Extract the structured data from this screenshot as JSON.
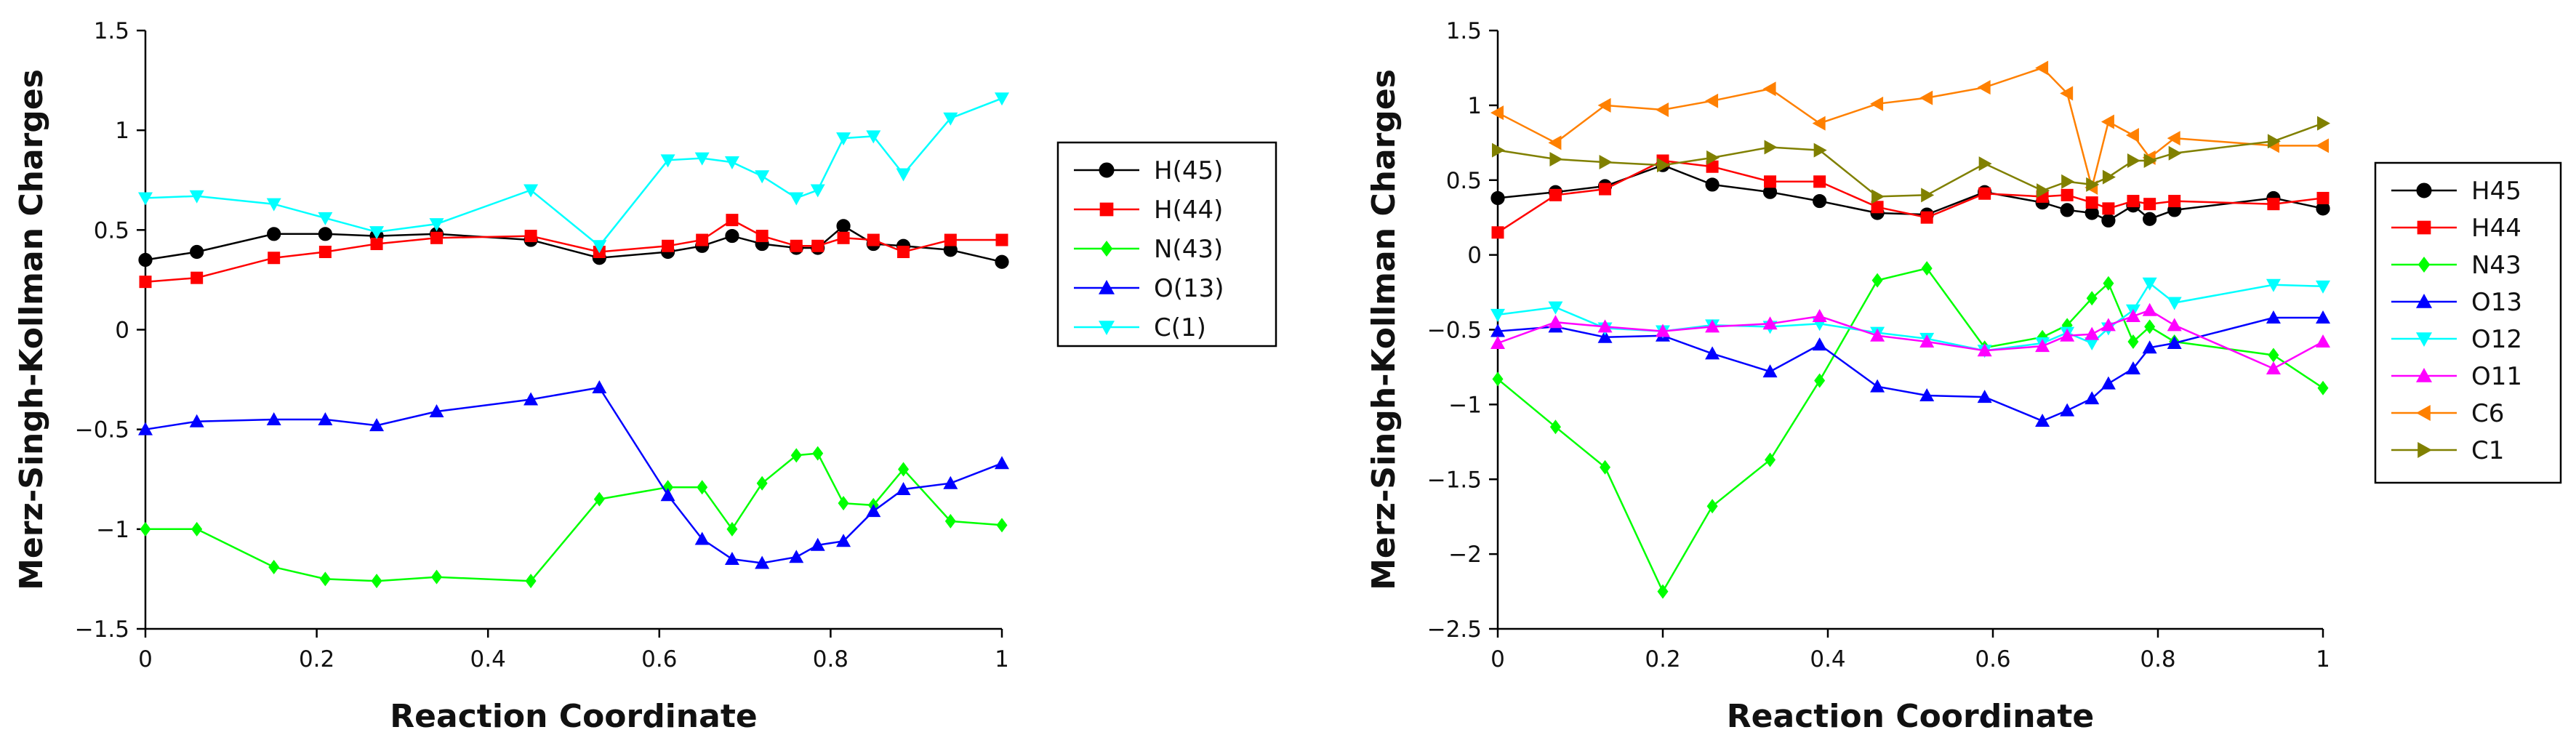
{
  "chart_data": [
    {
      "type": "line",
      "title": "",
      "xlabel": "Reaction Coordinate",
      "ylabel": "Merz-Singh-Kollman Charges",
      "xlim": [
        0,
        1
      ],
      "ylim": [
        -1.5,
        1.5
      ],
      "xticks": [
        0,
        0.2,
        0.4,
        0.6,
        0.8,
        1
      ],
      "xtick_labels": [
        "0",
        "0.2",
        "0.4",
        "0.6",
        "0.8",
        "1"
      ],
      "yticks": [
        -1.5,
        -1,
        -0.5,
        0,
        0.5,
        1,
        1.5
      ],
      "ytick_labels": [
        "−1.5",
        "−1",
        "−0.5",
        "0",
        "0.5",
        "1",
        "1.5"
      ],
      "legend_position": "right",
      "series": [
        {
          "name": "H(45)",
          "color": "#000000",
          "marker": "circle",
          "x": [
            0,
            0.06,
            0.15,
            0.21,
            0.27,
            0.34,
            0.45,
            0.53,
            0.61,
            0.65,
            0.685,
            0.72,
            0.76,
            0.785,
            0.815,
            0.85,
            0.885,
            0.94,
            1.0
          ],
          "y": [
            0.35,
            0.39,
            0.48,
            0.48,
            0.47,
            0.48,
            0.45,
            0.36,
            0.39,
            0.42,
            0.47,
            0.43,
            0.41,
            0.41,
            0.52,
            0.43,
            0.42,
            0.4,
            0.34
          ]
        },
        {
          "name": "H(44)",
          "color": "#ff0000",
          "marker": "square",
          "x": [
            0,
            0.06,
            0.15,
            0.21,
            0.27,
            0.34,
            0.45,
            0.53,
            0.61,
            0.65,
            0.685,
            0.72,
            0.76,
            0.785,
            0.815,
            0.85,
            0.885,
            0.94,
            1.0
          ],
          "y": [
            0.24,
            0.26,
            0.36,
            0.39,
            0.43,
            0.46,
            0.47,
            0.39,
            0.42,
            0.45,
            0.55,
            0.47,
            0.42,
            0.42,
            0.46,
            0.45,
            0.39,
            0.45,
            0.45
          ]
        },
        {
          "name": "N(43)",
          "color": "#00ff00",
          "marker": "diamond",
          "x": [
            0,
            0.06,
            0.15,
            0.21,
            0.27,
            0.34,
            0.45,
            0.53,
            0.61,
            0.65,
            0.685,
            0.72,
            0.76,
            0.785,
            0.815,
            0.85,
            0.885,
            0.94,
            1.0
          ],
          "y": [
            -1.0,
            -1.0,
            -1.19,
            -1.25,
            -1.26,
            -1.24,
            -1.26,
            -0.85,
            -0.79,
            -0.79,
            -1.0,
            -0.77,
            -0.63,
            -0.62,
            -0.87,
            -0.88,
            -0.7,
            -0.96,
            -0.98
          ]
        },
        {
          "name": "O(13)",
          "color": "#0000ff",
          "marker": "triangle-up",
          "x": [
            0,
            0.06,
            0.15,
            0.21,
            0.27,
            0.34,
            0.45,
            0.53,
            0.61,
            0.65,
            0.685,
            0.72,
            0.76,
            0.785,
            0.815,
            0.85,
            0.885,
            0.94,
            1.0
          ],
          "y": [
            -0.5,
            -0.46,
            -0.45,
            -0.45,
            -0.48,
            -0.41,
            -0.35,
            -0.29,
            -0.83,
            -1.05,
            -1.15,
            -1.17,
            -1.14,
            -1.08,
            -1.06,
            -0.91,
            -0.8,
            -0.77,
            -0.67
          ]
        },
        {
          "name": "C(1)",
          "color": "#00ffff",
          "marker": "triangle-down",
          "x": [
            0,
            0.06,
            0.15,
            0.21,
            0.27,
            0.34,
            0.45,
            0.53,
            0.61,
            0.65,
            0.685,
            0.72,
            0.76,
            0.785,
            0.815,
            0.85,
            0.885,
            0.94,
            1.0
          ],
          "y": [
            0.66,
            0.67,
            0.63,
            0.56,
            0.49,
            0.53,
            0.7,
            0.42,
            0.85,
            0.86,
            0.84,
            0.77,
            0.66,
            0.7,
            0.96,
            0.97,
            0.78,
            1.06,
            1.16
          ]
        }
      ]
    },
    {
      "type": "line",
      "title": "",
      "xlabel": "Reaction Coordinate",
      "ylabel": "Merz-Singh-Kollman Charges",
      "xlim": [
        0,
        1
      ],
      "ylim": [
        -2.5,
        1.5
      ],
      "xticks": [
        0,
        0.2,
        0.4,
        0.6,
        0.8,
        1
      ],
      "xtick_labels": [
        "0",
        "0.2",
        "0.4",
        "0.6",
        "0.8",
        "1"
      ],
      "yticks": [
        -2.5,
        -2,
        -1.5,
        -1,
        -0.5,
        0,
        0.5,
        1,
        1.5
      ],
      "ytick_labels": [
        "−2.5",
        "−2",
        "−1.5",
        "−1",
        "−0.5",
        "0",
        "0.5",
        "1",
        "1.5"
      ],
      "legend_position": "right",
      "series": [
        {
          "name": "H45",
          "color": "#000000",
          "marker": "circle",
          "x": [
            0,
            0.07,
            0.13,
            0.2,
            0.26,
            0.33,
            0.39,
            0.46,
            0.52,
            0.59,
            0.66,
            0.69,
            0.72,
            0.74,
            0.77,
            0.79,
            0.82,
            0.94,
            1.0
          ],
          "y": [
            0.38,
            0.42,
            0.46,
            0.6,
            0.47,
            0.42,
            0.36,
            0.28,
            0.27,
            0.42,
            0.35,
            0.3,
            0.28,
            0.23,
            0.33,
            0.24,
            0.3,
            0.38,
            0.31
          ]
        },
        {
          "name": "H44",
          "color": "#ff0000",
          "marker": "square",
          "x": [
            0,
            0.07,
            0.13,
            0.2,
            0.26,
            0.33,
            0.39,
            0.46,
            0.52,
            0.59,
            0.66,
            0.69,
            0.72,
            0.74,
            0.77,
            0.79,
            0.82,
            0.94,
            1.0
          ],
          "y": [
            0.15,
            0.4,
            0.44,
            0.63,
            0.59,
            0.49,
            0.49,
            0.32,
            0.25,
            0.41,
            0.39,
            0.4,
            0.35,
            0.31,
            0.36,
            0.34,
            0.36,
            0.34,
            0.38
          ]
        },
        {
          "name": "N43",
          "color": "#00ff00",
          "marker": "diamond",
          "x": [
            0,
            0.07,
            0.13,
            0.2,
            0.26,
            0.33,
            0.39,
            0.46,
            0.52,
            0.59,
            0.66,
            0.69,
            0.72,
            0.74,
            0.77,
            0.79,
            0.82,
            0.94,
            1.0
          ],
          "y": [
            -0.83,
            -1.15,
            -1.42,
            -2.25,
            -1.68,
            -1.37,
            -0.84,
            -0.17,
            -0.09,
            -0.62,
            -0.55,
            -0.47,
            -0.29,
            -0.19,
            -0.58,
            -0.48,
            -0.58,
            -0.67,
            -0.89
          ]
        },
        {
          "name": "O13",
          "color": "#0000ff",
          "marker": "triangle-up",
          "x": [
            0,
            0.07,
            0.13,
            0.2,
            0.26,
            0.33,
            0.39,
            0.46,
            0.52,
            0.59,
            0.66,
            0.69,
            0.72,
            0.74,
            0.77,
            0.79,
            0.82,
            0.94,
            1.0
          ],
          "y": [
            -0.51,
            -0.48,
            -0.55,
            -0.54,
            -0.66,
            -0.78,
            -0.6,
            -0.88,
            -0.94,
            -0.95,
            -1.11,
            -1.04,
            -0.96,
            -0.86,
            -0.76,
            -0.62,
            -0.59,
            -0.42,
            -0.42
          ]
        },
        {
          "name": "O12",
          "color": "#00ffff",
          "marker": "triangle-down",
          "x": [
            0,
            0.07,
            0.13,
            0.2,
            0.26,
            0.33,
            0.39,
            0.46,
            0.52,
            0.59,
            0.66,
            0.69,
            0.72,
            0.74,
            0.77,
            0.79,
            0.82,
            0.94,
            1.0
          ],
          "y": [
            -0.4,
            -0.35,
            -0.49,
            -0.51,
            -0.47,
            -0.48,
            -0.46,
            -0.52,
            -0.56,
            -0.64,
            -0.59,
            -0.52,
            -0.59,
            -0.49,
            -0.37,
            -0.19,
            -0.32,
            -0.2,
            -0.21
          ]
        },
        {
          "name": "O11",
          "color": "#ff00ff",
          "marker": "triangle-up",
          "x": [
            0,
            0.07,
            0.13,
            0.2,
            0.26,
            0.33,
            0.39,
            0.46,
            0.52,
            0.59,
            0.66,
            0.69,
            0.72,
            0.74,
            0.77,
            0.79,
            0.82,
            0.94,
            1.0
          ],
          "y": [
            -0.59,
            -0.45,
            -0.48,
            -0.51,
            -0.48,
            -0.46,
            -0.41,
            -0.54,
            -0.58,
            -0.64,
            -0.61,
            -0.54,
            -0.53,
            -0.47,
            -0.41,
            -0.37,
            -0.47,
            -0.76,
            -0.58
          ]
        },
        {
          "name": "C6",
          "color": "#ff8000",
          "marker": "triangle-left",
          "x": [
            0,
            0.07,
            0.13,
            0.2,
            0.26,
            0.33,
            0.39,
            0.46,
            0.52,
            0.59,
            0.66,
            0.69,
            0.72,
            0.74,
            0.77,
            0.79,
            0.82,
            0.94,
            1.0
          ],
          "y": [
            0.95,
            0.75,
            1.0,
            0.97,
            1.03,
            1.11,
            0.88,
            1.01,
            1.05,
            1.12,
            1.25,
            1.08,
            0.45,
            0.89,
            0.8,
            0.65,
            0.78,
            0.73,
            0.73
          ]
        },
        {
          "name": "C1",
          "color": "#808000",
          "marker": "triangle-right",
          "x": [
            0,
            0.07,
            0.13,
            0.2,
            0.26,
            0.33,
            0.39,
            0.46,
            0.52,
            0.59,
            0.66,
            0.69,
            0.72,
            0.74,
            0.77,
            0.79,
            0.82,
            0.94,
            1.0
          ],
          "y": [
            0.7,
            0.64,
            0.62,
            0.6,
            0.65,
            0.72,
            0.7,
            0.39,
            0.4,
            0.61,
            0.43,
            0.49,
            0.47,
            0.52,
            0.63,
            0.63,
            0.68,
            0.76,
            0.88
          ]
        }
      ]
    }
  ]
}
